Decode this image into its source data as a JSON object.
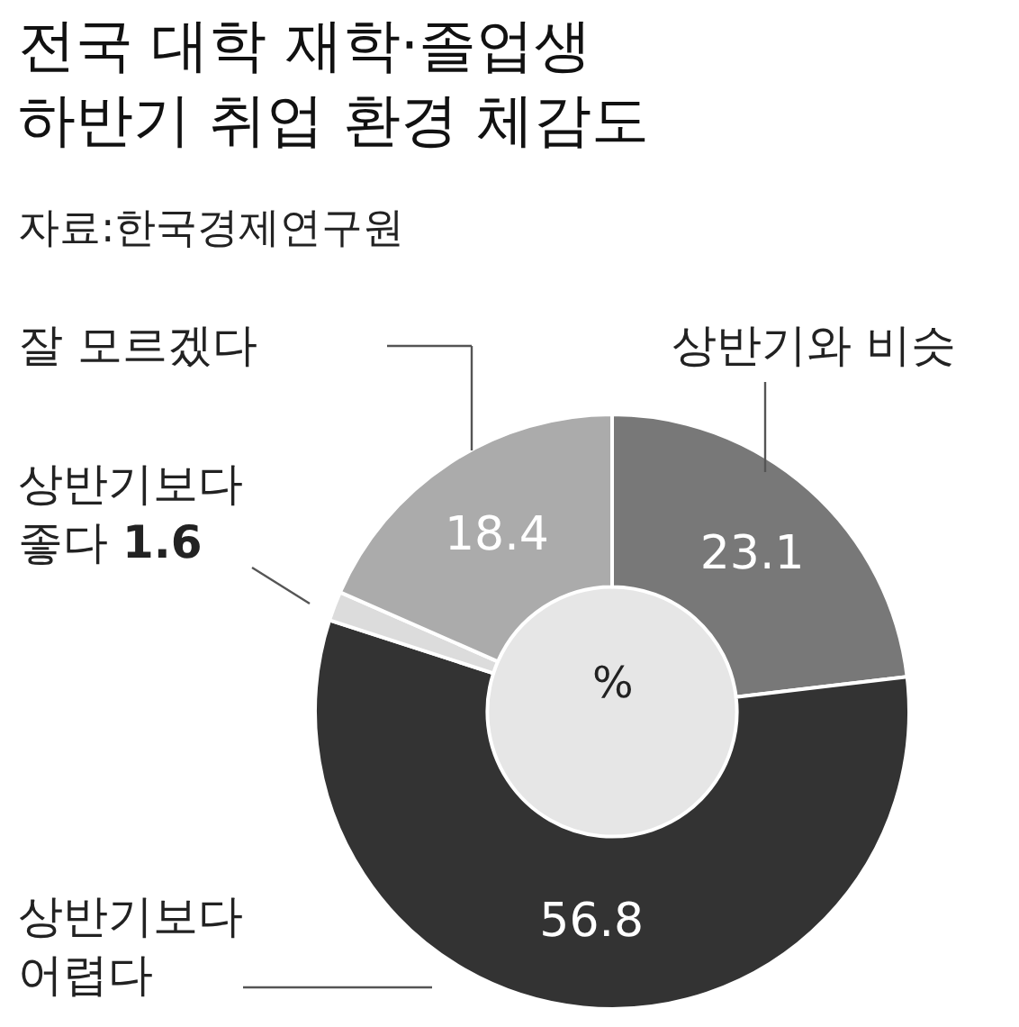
{
  "chart_data": {
    "type": "donut",
    "title": "전국 대학 재학·졸업생\n하반기 취업 환경 체감도",
    "subtitle": "자료:한국경제연구원",
    "categories": [
      "상반기와 비슷",
      "상반기보다\n어렵다",
      "상반기보다\n좋다",
      "잘 모르겠다"
    ],
    "values": [
      23.1,
      56.8,
      1.6,
      18.4
    ],
    "colors": [
      "#787878",
      "#333333",
      "#dcdcdc",
      "#ababab"
    ],
    "value_labels": [
      "23.1",
      "56.8",
      "1.6",
      "18.4"
    ],
    "annotations": [
      "%"
    ],
    "legend": false
  }
}
